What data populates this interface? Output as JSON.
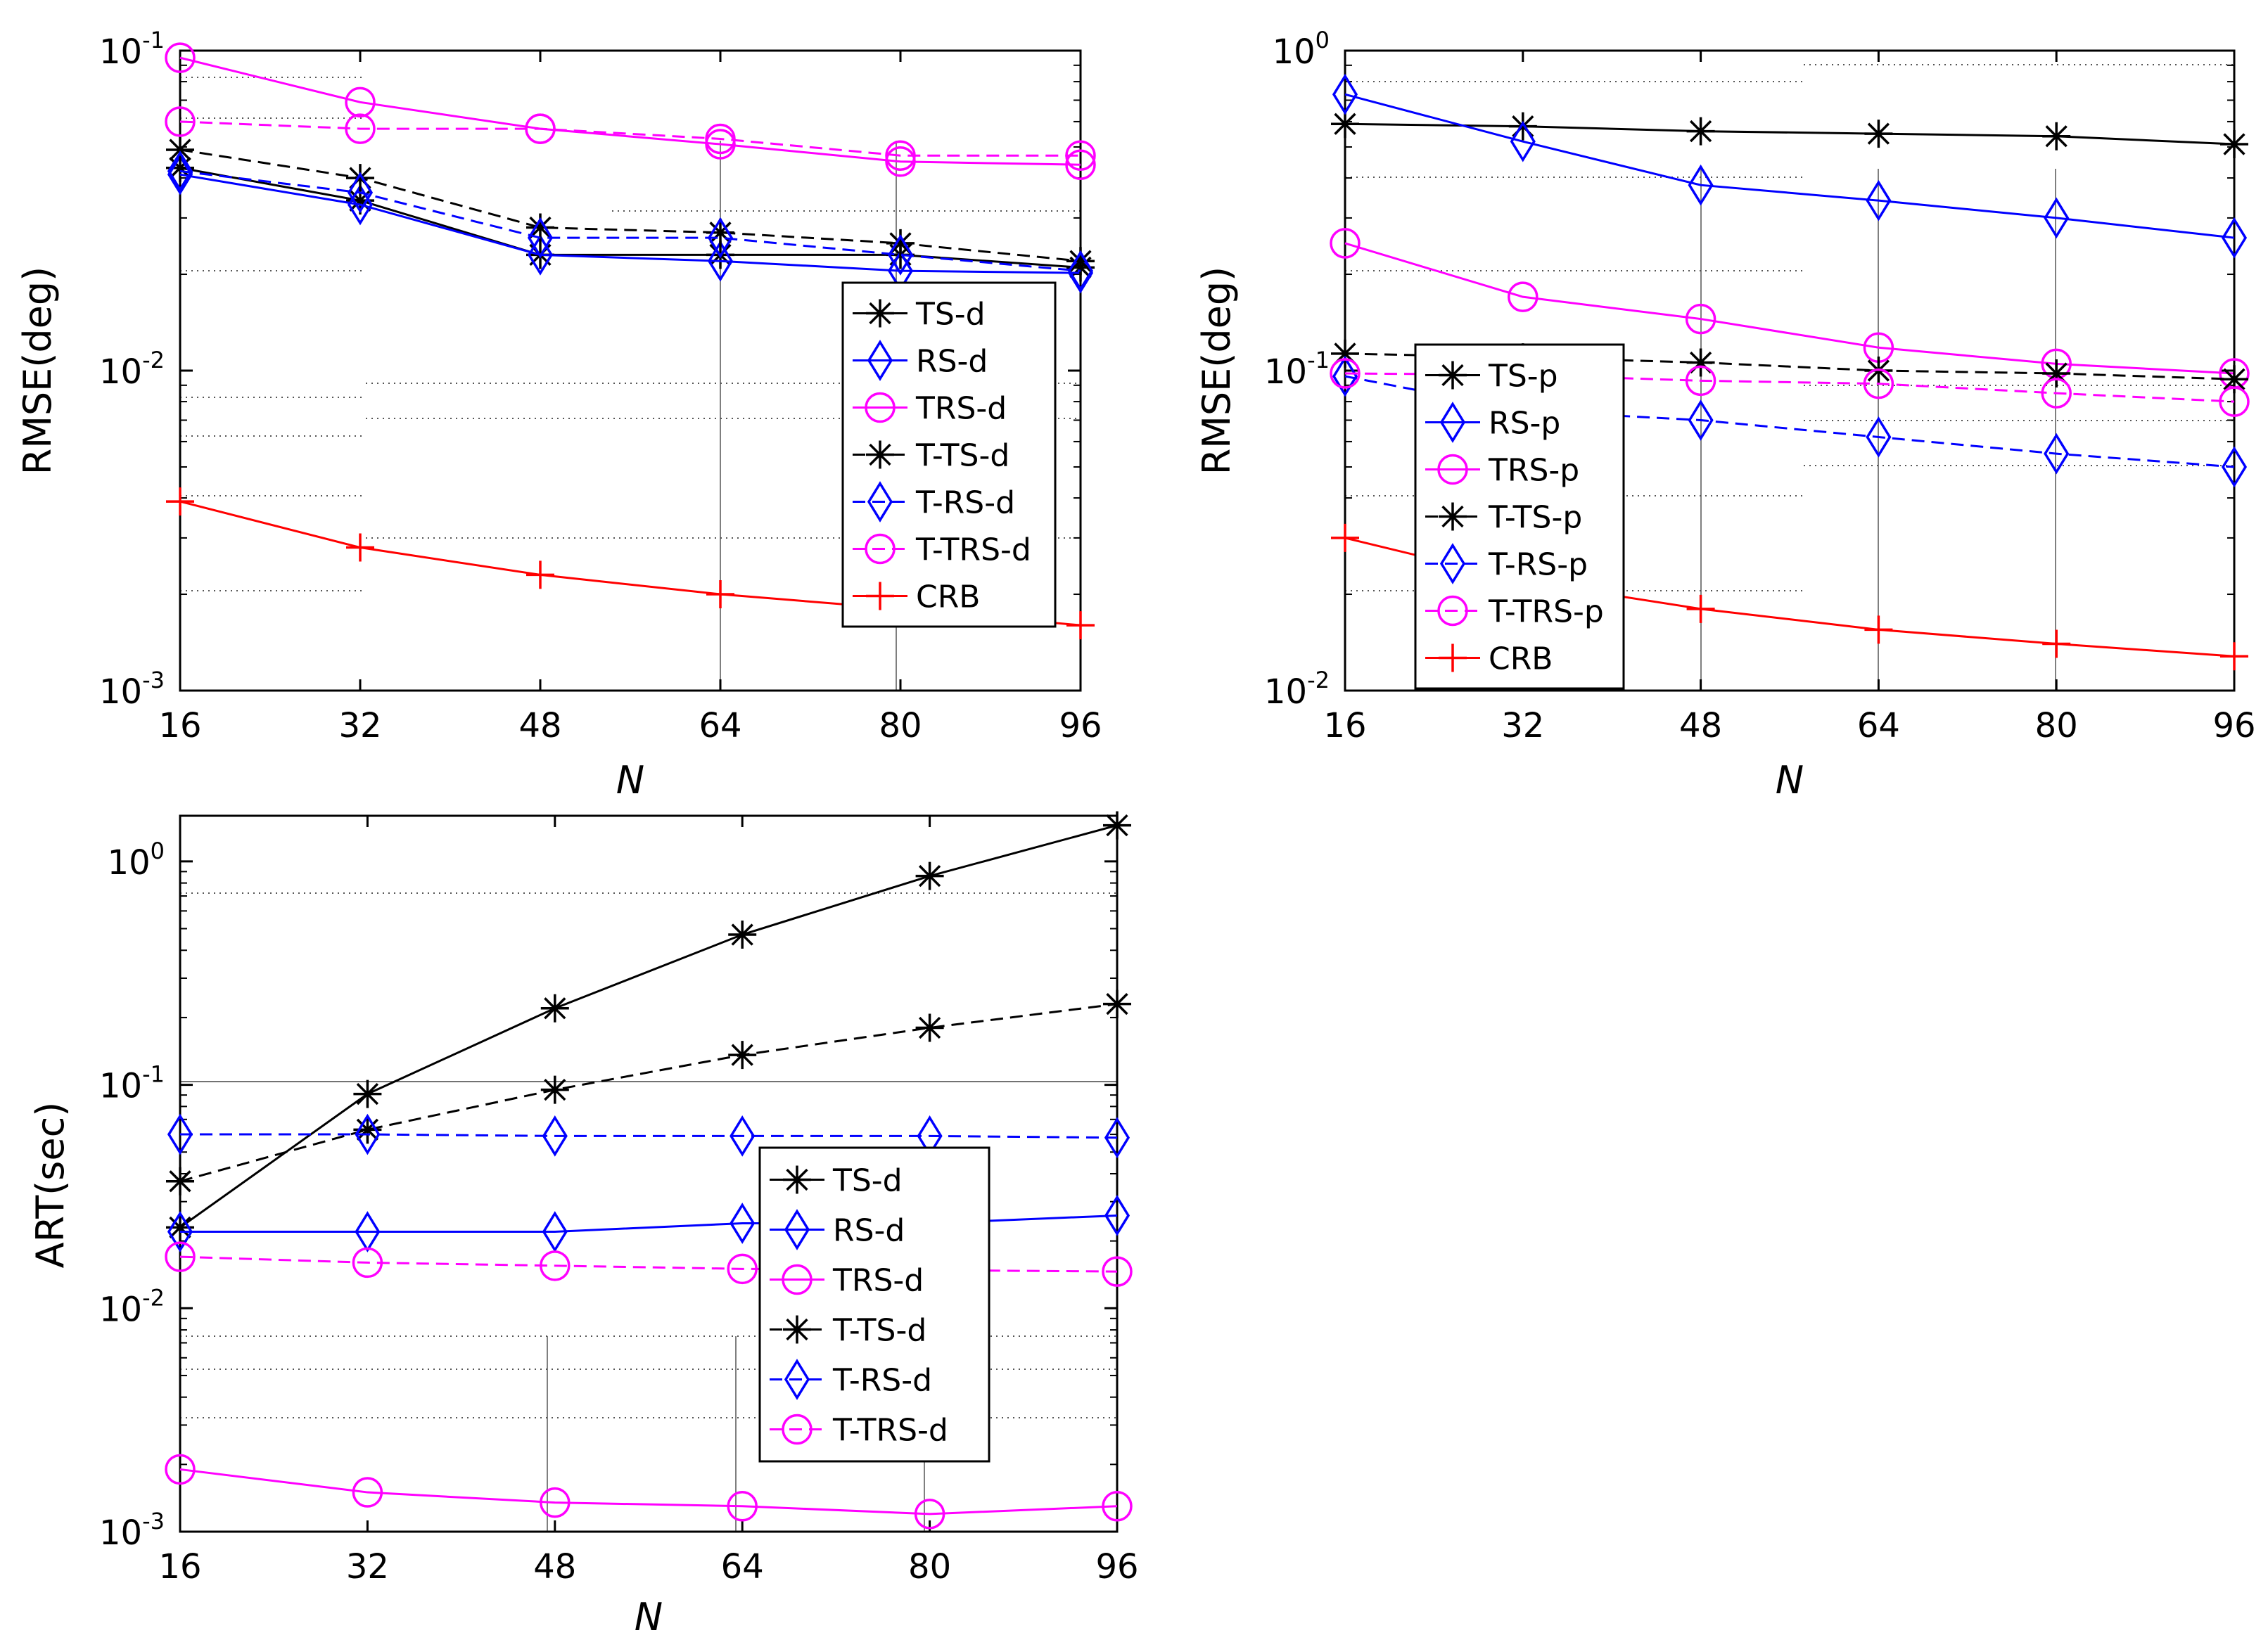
{
  "colors": {
    "black": "#000000",
    "blue": "#0000ff",
    "magenta": "#ff00ff",
    "red": "#ff0000"
  },
  "chart_data": [
    {
      "type": "line",
      "scale": "log",
      "xlabel": "N",
      "ylabel": "RMSE(deg)",
      "x": [
        16,
        32,
        48,
        64,
        80,
        96
      ],
      "xticks": [
        "16",
        "32",
        "48",
        "64",
        "80",
        "96"
      ],
      "ylim": [
        0.001,
        0.1
      ],
      "yticks": [
        {
          "base": "10",
          "exp": "-1",
          "value": 0.1
        },
        {
          "base": "10",
          "exp": "-2",
          "value": 0.01
        },
        {
          "base": "10",
          "exp": "-3",
          "value": 0.001
        }
      ],
      "legend_position": "center-right",
      "series": [
        {
          "name": "TS-d",
          "color": "black",
          "dash": false,
          "marker": "star",
          "values": [
            0.043,
            0.034,
            0.023,
            0.023,
            0.023,
            0.021
          ]
        },
        {
          "name": "RS-d",
          "color": "blue",
          "dash": false,
          "marker": "diamond",
          "values": [
            0.041,
            0.033,
            0.023,
            0.022,
            0.0205,
            0.0202
          ]
        },
        {
          "name": "TRS-d",
          "color": "magenta",
          "dash": false,
          "marker": "circle",
          "values": [
            0.095,
            0.069,
            0.057,
            0.051,
            0.045,
            0.044
          ]
        },
        {
          "name": "T-TS-d",
          "color": "black",
          "dash": true,
          "marker": "star",
          "values": [
            0.049,
            0.04,
            0.028,
            0.027,
            0.025,
            0.022
          ]
        },
        {
          "name": "T-RS-d",
          "color": "blue",
          "dash": true,
          "marker": "diamond",
          "values": [
            0.042,
            0.036,
            0.026,
            0.026,
            0.023,
            0.0205
          ]
        },
        {
          "name": "T-TRS-d",
          "color": "magenta",
          "dash": true,
          "marker": "circle",
          "values": [
            0.06,
            0.057,
            0.057,
            0.053,
            0.047,
            0.047
          ]
        },
        {
          "name": "CRB",
          "color": "red",
          "dash": false,
          "marker": "plus",
          "values": [
            0.0039,
            0.0028,
            0.0023,
            0.002,
            0.0018,
            0.0016
          ]
        }
      ]
    },
    {
      "type": "line",
      "scale": "log",
      "xlabel": "N",
      "ylabel": "RMSE(deg)",
      "x": [
        16,
        32,
        48,
        64,
        80,
        96
      ],
      "xticks": [
        "16",
        "32",
        "48",
        "64",
        "80",
        "96"
      ],
      "ylim": [
        0.01,
        1
      ],
      "yticks": [
        {
          "base": "10",
          "exp": "0",
          "value": 1
        },
        {
          "base": "10",
          "exp": "-1",
          "value": 0.1
        },
        {
          "base": "10",
          "exp": "-2",
          "value": 0.01
        }
      ],
      "legend_position": "bottom-left",
      "series": [
        {
          "name": "TS-p",
          "color": "black",
          "dash": false,
          "marker": "star",
          "values": [
            0.59,
            0.58,
            0.56,
            0.55,
            0.54,
            0.51
          ]
        },
        {
          "name": "RS-p",
          "color": "blue",
          "dash": false,
          "marker": "diamond",
          "values": [
            0.73,
            0.52,
            0.38,
            0.34,
            0.3,
            0.26
          ]
        },
        {
          "name": "TRS-p",
          "color": "magenta",
          "dash": false,
          "marker": "circle",
          "values": [
            0.25,
            0.17,
            0.145,
            0.118,
            0.105,
            0.098
          ]
        },
        {
          "name": "T-TS-p",
          "color": "black",
          "dash": true,
          "marker": "star",
          "values": [
            0.113,
            0.11,
            0.106,
            0.1,
            0.098,
            0.094
          ]
        },
        {
          "name": "T-RS-p",
          "color": "blue",
          "dash": true,
          "marker": "diamond",
          "values": [
            0.096,
            0.075,
            0.07,
            0.062,
            0.055,
            0.05
          ]
        },
        {
          "name": "T-TRS-p",
          "color": "magenta",
          "dash": true,
          "marker": "circle",
          "values": [
            0.098,
            0.097,
            0.093,
            0.091,
            0.085,
            0.08
          ]
        },
        {
          "name": "CRB",
          "color": "red",
          "dash": false,
          "marker": "plus",
          "values": [
            0.03,
            0.022,
            0.018,
            0.0155,
            0.014,
            0.0128
          ]
        }
      ]
    },
    {
      "type": "line",
      "scale": "log",
      "xlabel": "N",
      "ylabel": "ART(sec)",
      "x": [
        16,
        32,
        48,
        64,
        80,
        96
      ],
      "xticks": [
        "16",
        "32",
        "48",
        "64",
        "80",
        "96"
      ],
      "ylim": [
        0.001,
        1.6
      ],
      "yticks": [
        {
          "base": "10",
          "exp": "0",
          "value": 1
        },
        {
          "base": "10",
          "exp": "-1",
          "value": 0.1
        },
        {
          "base": "10",
          "exp": "-2",
          "value": 0.01
        },
        {
          "base": "10",
          "exp": "-3",
          "value": 0.001
        }
      ],
      "legend_position": "center",
      "series": [
        {
          "name": "TS-d",
          "color": "black",
          "dash": false,
          "marker": "star",
          "values": [
            0.023,
            0.091,
            0.22,
            0.47,
            0.86,
            1.45
          ]
        },
        {
          "name": "RS-d",
          "color": "blue",
          "dash": false,
          "marker": "diamond",
          "values": [
            0.022,
            0.022,
            0.022,
            0.024,
            0.024,
            0.026
          ]
        },
        {
          "name": "TRS-d",
          "color": "magenta",
          "dash": false,
          "marker": "circle",
          "values": [
            0.0019,
            0.0015,
            0.00135,
            0.0013,
            0.0012,
            0.0013
          ]
        },
        {
          "name": "T-TS-d",
          "color": "black",
          "dash": true,
          "marker": "star",
          "values": [
            0.037,
            0.063,
            0.095,
            0.136,
            0.18,
            0.23
          ]
        },
        {
          "name": "T-RS-d",
          "color": "blue",
          "dash": true,
          "marker": "diamond",
          "values": [
            0.06,
            0.06,
            0.059,
            0.059,
            0.059,
            0.058
          ]
        },
        {
          "name": "T-TRS-d",
          "color": "magenta",
          "dash": true,
          "marker": "circle",
          "values": [
            0.017,
            0.016,
            0.0155,
            0.015,
            0.0148,
            0.0146
          ]
        }
      ]
    }
  ]
}
